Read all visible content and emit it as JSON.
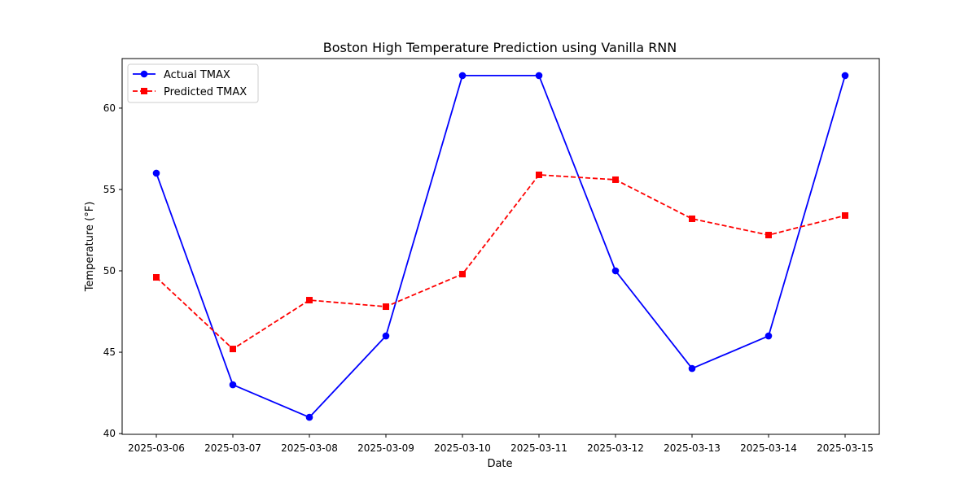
{
  "chart_data": {
    "type": "line",
    "title": "Boston High Temperature Prediction using Vanilla RNN",
    "xlabel": "Date",
    "ylabel": "Temperature (°F)",
    "categories": [
      "2025-03-06",
      "2025-03-07",
      "2025-03-08",
      "2025-03-09",
      "2025-03-10",
      "2025-03-11",
      "2025-03-12",
      "2025-03-13",
      "2025-03-14",
      "2025-03-15"
    ],
    "ylim": [
      40,
      63
    ],
    "yticks": [
      40,
      45,
      50,
      55,
      60
    ],
    "grid": false,
    "legend_position": "top-left",
    "series": [
      {
        "name": "Actual TMAX",
        "values": [
          56,
          43,
          41,
          46,
          62,
          62,
          50,
          44,
          46,
          62
        ],
        "color": "#0000ff",
        "marker": "circle",
        "line_style": "solid"
      },
      {
        "name": "Predicted TMAX",
        "values": [
          49.6,
          45.2,
          48.2,
          47.8,
          49.8,
          55.9,
          55.6,
          53.2,
          52.2,
          53.4
        ],
        "color": "#ff0000",
        "marker": "square",
        "line_style": "dashed"
      }
    ]
  }
}
